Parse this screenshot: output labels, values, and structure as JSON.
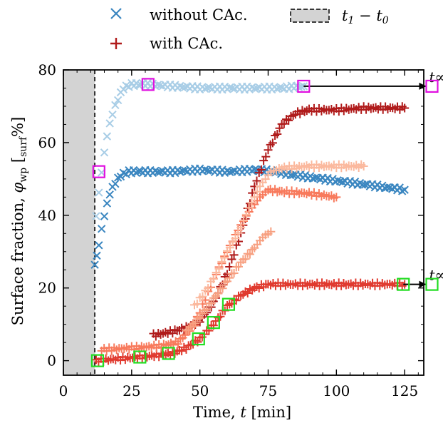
{
  "chart_data": {
    "type": "scatter",
    "xlabel": "Time, t [min]",
    "ylabel": "Surface fraction, φwp [surf%]",
    "xlim": [
      0,
      132
    ],
    "ylim": [
      -4,
      80
    ],
    "xticks": [
      0,
      25,
      50,
      75,
      100,
      125
    ],
    "yticks": [
      0,
      20,
      40,
      60,
      80
    ],
    "legend": {
      "placement": "top",
      "entries": [
        {
          "marker": "x",
          "label": "without CAc.",
          "color": "#3a86c0"
        },
        {
          "marker": "+",
          "label": "with CAc.",
          "color": "#b01b1b"
        },
        {
          "marker": "box",
          "label": "t1 − t0",
          "color": "#d3d3d3"
        }
      ]
    },
    "shaded_region": {
      "x": [
        0,
        11.5
      ],
      "label": "t1 − t0",
      "color": "#d3d3d3"
    },
    "vline": {
      "x": 11.5,
      "style": "dashed"
    },
    "series": [
      {
        "marker": "x",
        "color": "#a8cde6",
        "points": [
          [
            12,
            40
          ],
          [
            14,
            52
          ],
          [
            16,
            62
          ],
          [
            18,
            68
          ],
          [
            20,
            72
          ],
          [
            22,
            75
          ],
          [
            25,
            76
          ],
          [
            30,
            76
          ],
          [
            40,
            75.5
          ],
          [
            50,
            75
          ],
          [
            60,
            75
          ],
          [
            70,
            75
          ],
          [
            80,
            75
          ],
          [
            88,
            75.5
          ]
        ]
      },
      {
        "marker": "x",
        "color": "#3a86c0",
        "points": [
          [
            11.5,
            26
          ],
          [
            13,
            32
          ],
          [
            15,
            40
          ],
          [
            17,
            46
          ],
          [
            19,
            49
          ],
          [
            21,
            51
          ],
          [
            24,
            52
          ],
          [
            30,
            52
          ],
          [
            40,
            52
          ],
          [
            50,
            52.5
          ],
          [
            60,
            52
          ],
          [
            70,
            52.5
          ],
          [
            78,
            52
          ],
          [
            85,
            51
          ],
          [
            95,
            50
          ],
          [
            105,
            49
          ],
          [
            115,
            48
          ],
          [
            125,
            47
          ]
        ]
      },
      {
        "marker": "+",
        "color": "#b01b1b",
        "points": [
          [
            33,
            7
          ],
          [
            40,
            8
          ],
          [
            45,
            9
          ],
          [
            50,
            11
          ],
          [
            55,
            16
          ],
          [
            60,
            24
          ],
          [
            65,
            35
          ],
          [
            70,
            48
          ],
          [
            75,
            58
          ],
          [
            80,
            65
          ],
          [
            85,
            68
          ],
          [
            90,
            69
          ],
          [
            100,
            69
          ],
          [
            110,
            69.5
          ],
          [
            125,
            69.5
          ]
        ]
      },
      {
        "marker": "+",
        "color": "#e03a2f",
        "points": [
          [
            12,
            0
          ],
          [
            20,
            0.5
          ],
          [
            28,
            1
          ],
          [
            35,
            1.5
          ],
          [
            40,
            2
          ],
          [
            45,
            3.5
          ],
          [
            50,
            6
          ],
          [
            55,
            10
          ],
          [
            60,
            15
          ],
          [
            65,
            18
          ],
          [
            70,
            20
          ],
          [
            75,
            21
          ],
          [
            85,
            21
          ],
          [
            100,
            21
          ],
          [
            115,
            21
          ],
          [
            125,
            21
          ]
        ]
      },
      {
        "marker": "+",
        "color": "#f87a5c",
        "points": [
          [
            14,
            3
          ],
          [
            25,
            3.5
          ],
          [
            35,
            4
          ],
          [
            42,
            5
          ],
          [
            48,
            10
          ],
          [
            52,
            17
          ],
          [
            56,
            24
          ],
          [
            60,
            30
          ],
          [
            64,
            36
          ],
          [
            68,
            41
          ],
          [
            72,
            45
          ],
          [
            75,
            47
          ],
          [
            80,
            46.5
          ],
          [
            90,
            46
          ],
          [
            100,
            45
          ]
        ]
      },
      {
        "marker": "+",
        "color": "#fbb99e",
        "points": [
          [
            48,
            15
          ],
          [
            52,
            19
          ],
          [
            56,
            24
          ],
          [
            60,
            30
          ],
          [
            64,
            35
          ],
          [
            68,
            42
          ],
          [
            72,
            48
          ],
          [
            76,
            52
          ],
          [
            80,
            53
          ],
          [
            90,
            53.5
          ],
          [
            100,
            53.5
          ],
          [
            110,
            53.5
          ]
        ]
      },
      {
        "marker": "+",
        "color": "#f7a081",
        "points": [
          [
            45,
            8
          ],
          [
            50,
            12
          ],
          [
            55,
            17
          ],
          [
            60,
            22
          ],
          [
            65,
            27
          ],
          [
            70,
            31
          ],
          [
            73,
            34
          ],
          [
            76,
            35.5
          ]
        ]
      }
    ],
    "markers_magenta": [
      [
        13,
        52
      ],
      [
        31,
        76
      ],
      [
        88,
        75.5
      ],
      [
        135,
        75.5
      ]
    ],
    "markers_green": [
      [
        12.5,
        0
      ],
      [
        28,
        1
      ],
      [
        38.5,
        2
      ],
      [
        49.5,
        6
      ],
      [
        55,
        10.5
      ],
      [
        60.5,
        15.5
      ],
      [
        124.5,
        21
      ],
      [
        135,
        21
      ]
    ],
    "annotations": [
      {
        "text": "t∞",
        "x": 135,
        "y": 75.5,
        "arrow_from": 88
      },
      {
        "text": "t∞",
        "x": 135,
        "y": 21,
        "arrow_from": 124.5
      }
    ]
  }
}
